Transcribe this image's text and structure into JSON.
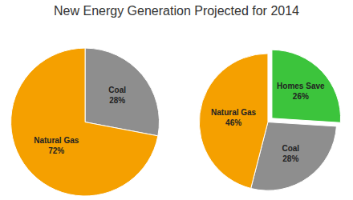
{
  "title": "New Energy Generation Projected for 2014",
  "chart_data": [
    {
      "type": "pie",
      "categories": [
        "Coal",
        "Natural Gas"
      ],
      "values": [
        28,
        72
      ],
      "value_labels": [
        "28%",
        "72%"
      ],
      "colors": [
        "#8e8e8e",
        "#f5a000"
      ],
      "data_labels": true
    },
    {
      "type": "pie",
      "categories": [
        "Homes Save",
        "Coal",
        "Natural Gas"
      ],
      "values": [
        26,
        28,
        46
      ],
      "value_labels": [
        "26%",
        "28%",
        "46%"
      ],
      "colors": [
        "#3cc43c",
        "#8e8e8e",
        "#f5a000"
      ],
      "data_labels": true
    }
  ]
}
